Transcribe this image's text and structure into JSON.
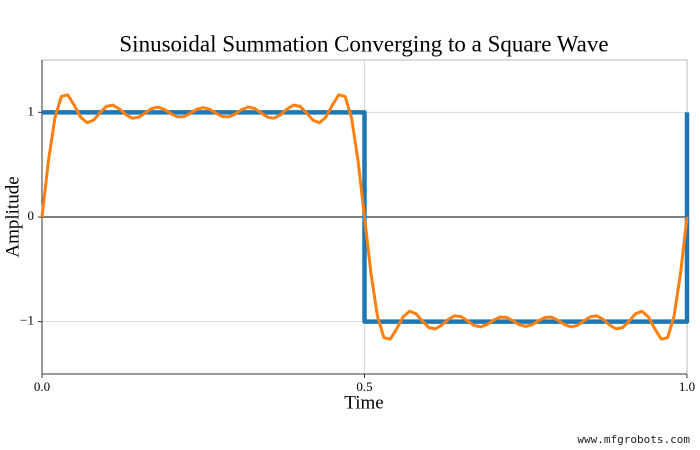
{
  "chart_data": {
    "type": "line",
    "title": "Sinusoidal Summation Converging to a Square Wave",
    "x_label": "Time",
    "y_label": "Amplitude",
    "xlim": [
      0,
      1
    ],
    "ylim": [
      -1.5,
      1.5
    ],
    "xticks": [
      {
        "value": 0,
        "label": "0.0"
      },
      0.5,
      {
        "value": 1,
        "label": "1.0"
      }
    ],
    "yticks": [
      {
        "value": -1,
        "label": "−1"
      },
      0,
      1
    ],
    "grid": true,
    "series": [
      {
        "color": "#1f77b4",
        "x": [
          0,
          0.5,
          0.5,
          1,
          1
        ],
        "values": [
          1,
          1,
          -1,
          -1,
          1
        ]
      },
      {
        "color": "#ff7f0e",
        "x": [
          0,
          0.01,
          0.02,
          0.03,
          0.04,
          0.05,
          0.06,
          0.07,
          0.08,
          0.09,
          0.1,
          0.11,
          0.12,
          0.13,
          0.14,
          0.15,
          0.16,
          0.17,
          0.18,
          0.19,
          0.2,
          0.21,
          0.22,
          0.23,
          0.24,
          0.25,
          0.26,
          0.27,
          0.28,
          0.29,
          0.3,
          0.31,
          0.32,
          0.33,
          0.34,
          0.35,
          0.36,
          0.37,
          0.38,
          0.39,
          0.4,
          0.41,
          0.42,
          0.43,
          0.44,
          0.45,
          0.46,
          0.47,
          0.48,
          0.49,
          0.5,
          0.51,
          0.52,
          0.53,
          0.54,
          0.55,
          0.56,
          0.57,
          0.58,
          0.59,
          0.6,
          0.61,
          0.62,
          0.63,
          0.64,
          0.65,
          0.66,
          0.67,
          0.68,
          0.69,
          0.7,
          0.71,
          0.72,
          0.73,
          0.74,
          0.75,
          0.76,
          0.77,
          0.78,
          0.79,
          0.8,
          0.81,
          0.82,
          0.83,
          0.84,
          0.85,
          0.86,
          0.87,
          0.88,
          0.89,
          0.9,
          0.91,
          0.92,
          0.93,
          0.94,
          0.95,
          0.96,
          0.97,
          0.98,
          0.99,
          1
        ],
        "values": [
          0,
          0.537,
          0.945,
          1.152,
          1.167,
          1.067,
          0.953,
          0.9,
          0.926,
          0.996,
          1.057,
          1.069,
          1.032,
          0.978,
          0.944,
          0.953,
          0.994,
          1.036,
          1.05,
          1.027,
          0.986,
          0.957,
          0.959,
          0.991,
          1.029,
          1.045,
          1.029,
          0.991,
          0.959,
          0.957,
          0.986,
          1.027,
          1.05,
          1.036,
          0.994,
          0.953,
          0.944,
          0.978,
          1.032,
          1.069,
          1.057,
          0.996,
          0.926,
          0.9,
          0.953,
          1.067,
          1.167,
          1.152,
          0.945,
          0.537,
          0,
          -0.537,
          -0.945,
          -1.152,
          -1.167,
          -1.067,
          -0.953,
          -0.9,
          -0.926,
          -0.996,
          -1.057,
          -1.069,
          -1.032,
          -0.978,
          -0.944,
          -0.953,
          -0.994,
          -1.036,
          -1.05,
          -1.027,
          -0.986,
          -0.957,
          -0.959,
          -0.991,
          -1.029,
          -1.045,
          -1.029,
          -0.991,
          -0.959,
          -0.957,
          -0.986,
          -1.027,
          -1.05,
          -1.036,
          -0.994,
          -0.953,
          -0.944,
          -0.978,
          -1.032,
          -1.069,
          -1.057,
          -0.996,
          -0.926,
          -0.9,
          -0.953,
          -1.067,
          -1.167,
          -1.152,
          -0.945,
          -0.537,
          0
        ]
      }
    ],
    "watermark": "www.mfgrobots.com"
  }
}
